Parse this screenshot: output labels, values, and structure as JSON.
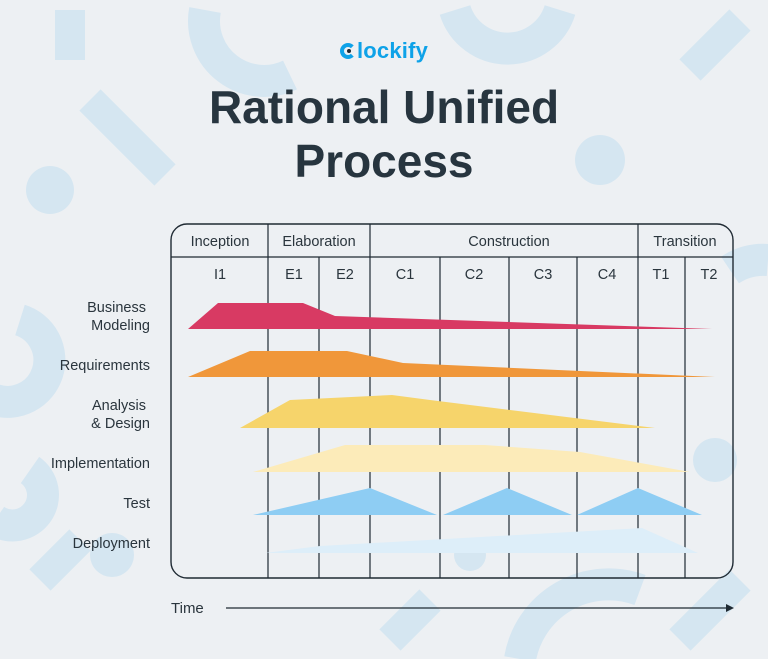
{
  "brand": {
    "name": "lockify",
    "logo_icon": "clockify-c-icon",
    "color": "#0ea2e8"
  },
  "title": {
    "line1": "Rational Unified",
    "line2": "Process"
  },
  "phases": [
    {
      "name": "Inception",
      "iterations": [
        "I1"
      ]
    },
    {
      "name": "Elaboration",
      "iterations": [
        "E1",
        "E2"
      ]
    },
    {
      "name": "Construction",
      "iterations": [
        "C1",
        "C2",
        "C3",
        "C4"
      ]
    },
    {
      "name": "Transition",
      "iterations": [
        "T1",
        "T2"
      ]
    }
  ],
  "disciplines": [
    {
      "label_lines": [
        "Business",
        "Modeling"
      ],
      "color": "#d83a63"
    },
    {
      "label_lines": [
        "Requirements"
      ],
      "color": "#f0973a"
    },
    {
      "label_lines": [
        "Analysis",
        "& Design"
      ],
      "color": "#f6d46b"
    },
    {
      "label_lines": [
        "Implementation"
      ],
      "color": "#fcebb9"
    },
    {
      "label_lines": [
        "Test"
      ],
      "color": "#8ecdf3"
    },
    {
      "label_lines": [
        "Deployment"
      ],
      "color": "#ddeef9"
    }
  ],
  "axis": {
    "label": "Time",
    "arrow_icon": "right-arrow-icon"
  }
}
